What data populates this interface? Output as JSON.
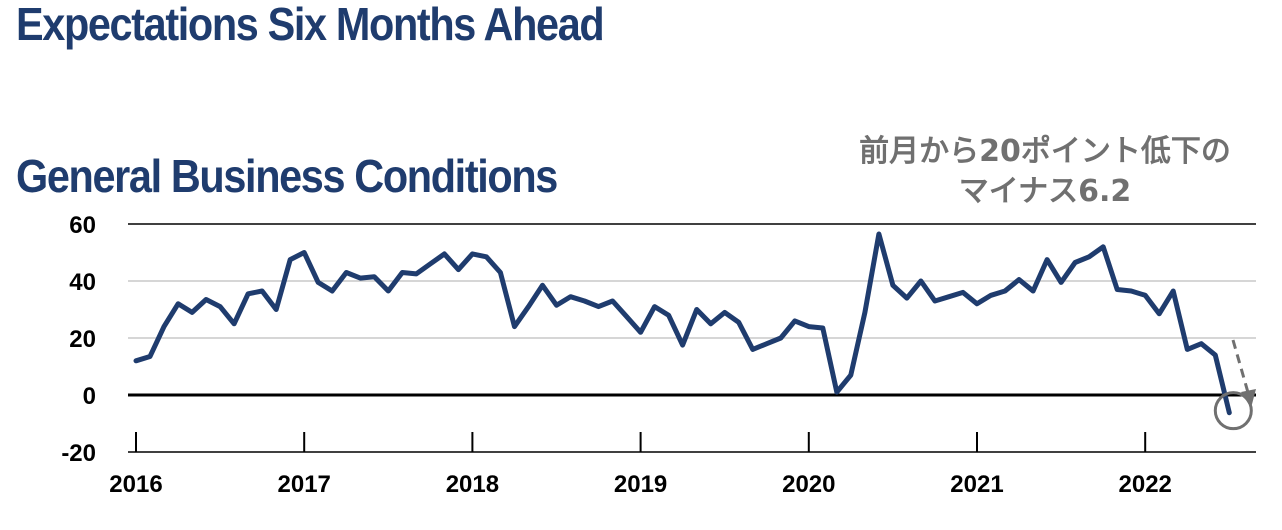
{
  "header": {
    "title": "Expectations Six Months Ahead"
  },
  "chart_data": {
    "type": "line",
    "title": "General Business Conditions",
    "annotation_line1": "前月から20ポイント低下の",
    "annotation_line2": "マイナス6.2",
    "xlabel": "",
    "ylabel": "",
    "ylim": [
      -20,
      60
    ],
    "yticks": [
      60,
      40,
      20,
      0,
      -20
    ],
    "xticks": [
      "2016",
      "2017",
      "2018",
      "2019",
      "2020",
      "2021",
      "2022"
    ],
    "grid": "horizontal",
    "line_color": "#1f3c6e",
    "arrow_color": "#707070",
    "start": {
      "year": 2016,
      "month": 1
    },
    "values": [
      12,
      13.5,
      24,
      32,
      29,
      33.5,
      31,
      25,
      35.5,
      36.5,
      30,
      47.5,
      50,
      39.5,
      36.5,
      43,
      41,
      41.5,
      36.5,
      43,
      42.5,
      46,
      49.5,
      44,
      49.5,
      48.5,
      43,
      24,
      31,
      38.5,
      31.5,
      34.5,
      33,
      31,
      33,
      27.5,
      22,
      31,
      28,
      17.5,
      30,
      25,
      29,
      25.5,
      16,
      18,
      20,
      26,
      24,
      23.5,
      1,
      7,
      29,
      56.5,
      38.5,
      34,
      40,
      33,
      34.5,
      36,
      32,
      35,
      36.5,
      40.5,
      36.5,
      47.5,
      39.5,
      46.5,
      48.5,
      52,
      37,
      36.5,
      35,
      28.5,
      36.5,
      16,
      18,
      14,
      -6.2
    ]
  }
}
